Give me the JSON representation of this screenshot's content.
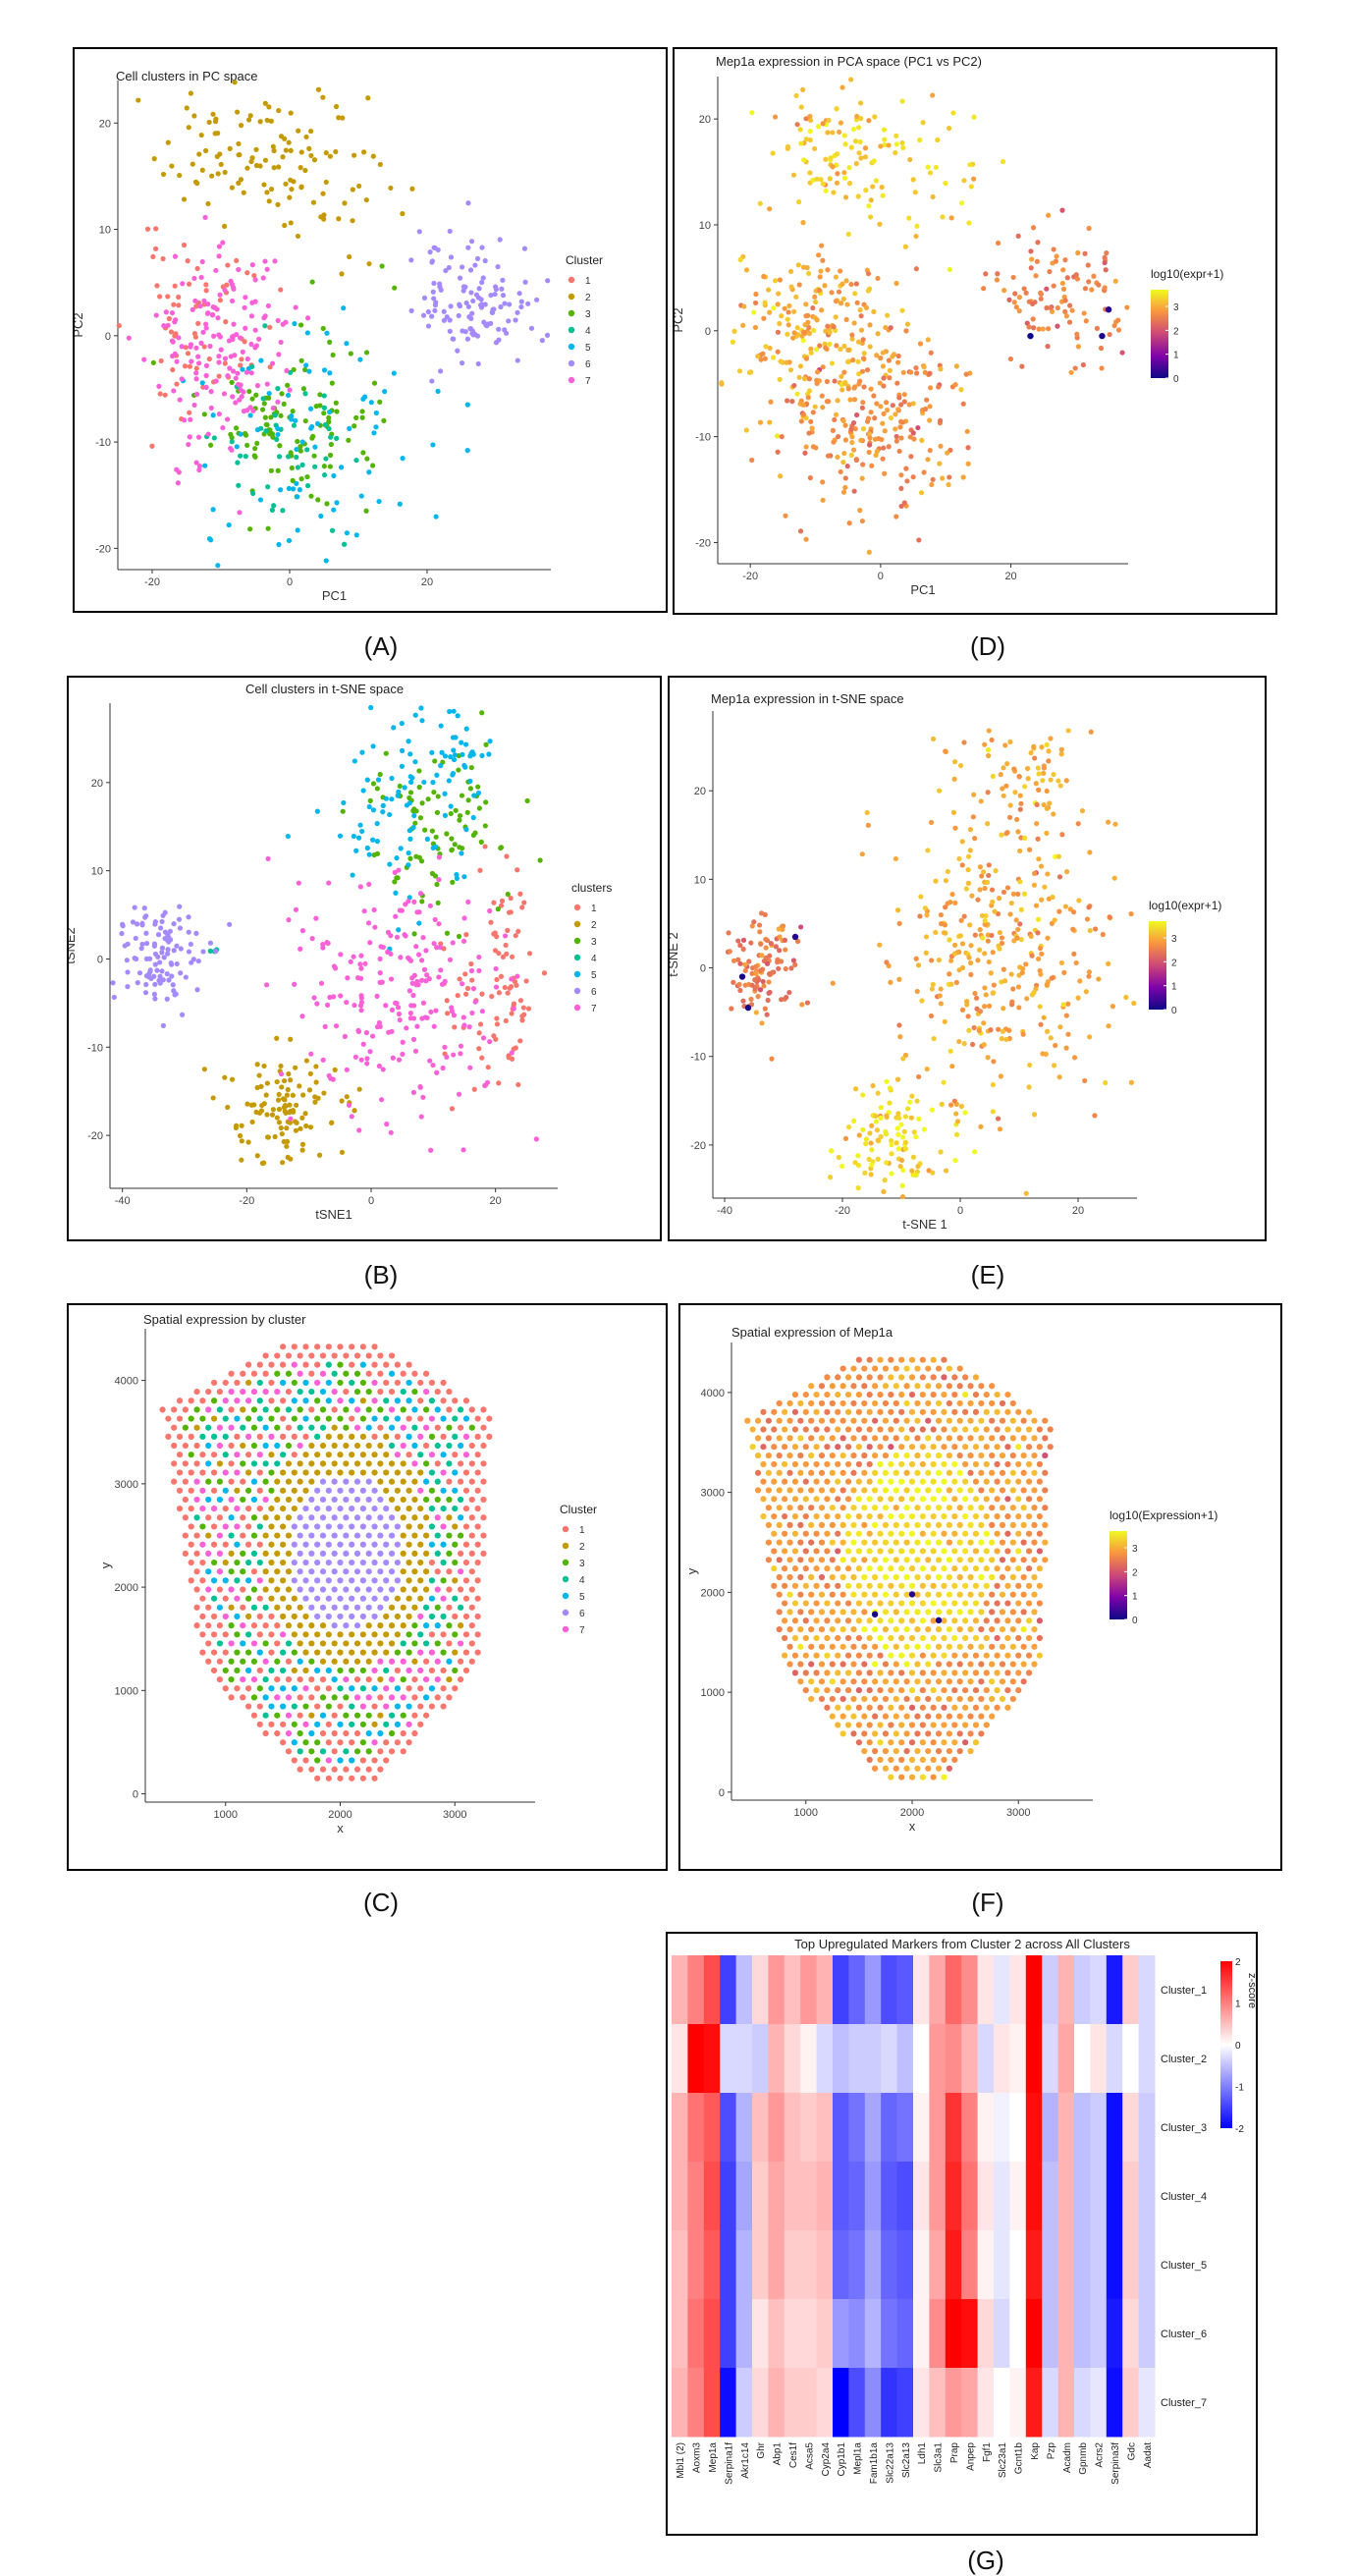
{
  "palette7": [
    "#F8766D",
    "#C49A00",
    "#53B400",
    "#00C094",
    "#00B6EB",
    "#A58AFF",
    "#FB61D7"
  ],
  "continuous_colors": [
    "#0D0887",
    "#7E03A8",
    "#CC4778",
    "#F89540",
    "#F0F921"
  ],
  "diverging_colors": [
    "#0000FF",
    "#FFFFFF",
    "#FF0000"
  ],
  "captions": {
    "A": "(A)",
    "B": "(B)",
    "C": "(C)",
    "D": "(D)",
    "E": "(E)",
    "F": "(F)",
    "G": "(G)"
  },
  "chart_data": [
    {
      "id": "A",
      "type": "scatter",
      "title": "Cell clusters in PC space",
      "xlabel": "PC1",
      "ylabel": "PC2",
      "xlim": [
        -25,
        38
      ],
      "ylim": [
        -22,
        24
      ],
      "xticks": [
        -20,
        0,
        20
      ],
      "yticks": [
        -20,
        -10,
        0,
        10,
        20
      ],
      "grid": false,
      "legend": {
        "title": "Cluster",
        "placement": "right",
        "entries": [
          "1",
          "2",
          "3",
          "4",
          "5",
          "6",
          "7"
        ]
      },
      "series": [
        {
          "name": "1",
          "blobs": [
            {
              "cx": -13,
              "cy": 1,
              "sx": 5,
              "sy": 4,
              "n": 70
            }
          ]
        },
        {
          "name": "2",
          "blobs": [
            {
              "cx": -6,
              "cy": 17,
              "sx": 6,
              "sy": 3,
              "n": 100
            },
            {
              "cx": 8,
              "cy": 14,
              "sx": 5,
              "sy": 4,
              "n": 25
            }
          ]
        },
        {
          "name": "3",
          "blobs": [
            {
              "cx": 1,
              "cy": -9,
              "sx": 6,
              "sy": 4.5,
              "n": 110
            }
          ]
        },
        {
          "name": "4",
          "blobs": [
            {
              "cx": -2,
              "cy": -11,
              "sx": 5,
              "sy": 4,
              "n": 45
            }
          ]
        },
        {
          "name": "5",
          "blobs": [
            {
              "cx": 3,
              "cy": -8,
              "sx": 9,
              "sy": 6,
              "n": 80
            }
          ]
        },
        {
          "name": "6",
          "blobs": [
            {
              "cx": 28,
              "cy": 3,
              "sx": 5,
              "sy": 3,
              "n": 110
            },
            {
              "cx": 22,
              "cy": 7,
              "sx": 3,
              "sy": 2,
              "n": 15
            }
          ]
        },
        {
          "name": "7",
          "blobs": [
            {
              "cx": -10,
              "cy": -1,
              "sx": 5,
              "sy": 5,
              "n": 160
            }
          ]
        }
      ]
    },
    {
      "id": "D",
      "type": "scatter",
      "title": "Mep1a expression in PCA space (PC1 vs PC2)",
      "xlabel": "PC1",
      "ylabel": "PC2",
      "xlim": [
        -25,
        38
      ],
      "ylim": [
        -22,
        24
      ],
      "xticks": [
        -20,
        0,
        20
      ],
      "yticks": [
        -20,
        -10,
        0,
        10,
        20
      ],
      "grid": false,
      "colorbar": {
        "title": "log10(expr+1)",
        "placement": "right",
        "range": [
          0,
          3.7
        ],
        "ticks": [
          0,
          1,
          2,
          3
        ]
      },
      "series": [
        {
          "name": "",
          "value": 3.3,
          "blobs": [
            {
              "cx": -6,
              "cy": 17,
              "sx": 6,
              "sy": 3,
              "n": 110
            },
            {
              "cx": 8,
              "cy": 14,
              "sx": 5,
              "sy": 4,
              "n": 25
            }
          ]
        },
        {
          "name": "",
          "value": 3.0,
          "blobs": [
            {
              "cx": -11,
              "cy": 0,
              "sx": 6,
              "sy": 4.5,
              "n": 220
            }
          ]
        },
        {
          "name": "",
          "value": 2.7,
          "blobs": [
            {
              "cx": 0,
              "cy": -9,
              "sx": 7,
              "sy": 5,
              "n": 230
            }
          ]
        },
        {
          "name": "",
          "value": 2.6,
          "blobs": [
            {
              "cx": 28,
              "cy": 3,
              "sx": 5,
              "sy": 3,
              "n": 110
            }
          ]
        }
      ],
      "highlight_points": [
        {
          "x": 23,
          "y": -0.5,
          "value": 0
        },
        {
          "x": 35,
          "y": 2,
          "value": 0.2
        },
        {
          "x": 34,
          "y": -0.5,
          "value": 0.1
        }
      ]
    },
    {
      "id": "B",
      "type": "scatter",
      "title": "Cell clusters in t-SNE space",
      "xlabel": "tSNE1",
      "ylabel": "tSNE2",
      "xlim": [
        -42,
        30
      ],
      "ylim": [
        -26,
        29
      ],
      "xticks": [
        -40,
        -20,
        0,
        20
      ],
      "yticks": [
        -20,
        -10,
        0,
        10,
        20
      ],
      "grid": false,
      "legend": {
        "title": "clusters",
        "placement": "right",
        "entries": [
          "1",
          "2",
          "3",
          "4",
          "5",
          "6",
          "7"
        ]
      },
      "series": [
        {
          "name": "1",
          "blobs": [
            {
              "cx": 20,
              "cy": -3,
              "sx": 4,
              "sy": 6,
              "n": 90
            }
          ]
        },
        {
          "name": "2",
          "blobs": [
            {
              "cx": -14,
              "cy": -17,
              "sx": 5,
              "sy": 3.5,
              "n": 110
            }
          ]
        },
        {
          "name": "3",
          "blobs": [
            {
              "cx": 10,
              "cy": 15,
              "sx": 6,
              "sy": 5,
              "n": 90
            }
          ]
        },
        {
          "name": "4",
          "blobs": [
            {
              "cx": -25,
              "cy": 1,
              "sx": 0.5,
              "sy": 0.5,
              "n": 3
            }
          ]
        },
        {
          "name": "5",
          "blobs": [
            {
              "cx": 5,
              "cy": 17,
              "sx": 6,
              "sy": 5,
              "n": 80
            },
            {
              "cx": 14,
              "cy": 23,
              "sx": 3,
              "sy": 3,
              "n": 30
            }
          ]
        },
        {
          "name": "6",
          "blobs": [
            {
              "cx": -34,
              "cy": 0,
              "sx": 3.5,
              "sy": 3,
              "n": 110
            }
          ]
        },
        {
          "name": "7",
          "blobs": [
            {
              "cx": 5,
              "cy": -3,
              "sx": 8,
              "sy": 7,
              "n": 220
            }
          ]
        }
      ]
    },
    {
      "id": "E",
      "type": "scatter",
      "title": "Mep1a expression in t-SNE space",
      "xlabel": "t-SNE 1",
      "ylabel": "t-SNE 2",
      "xlim": [
        -42,
        30
      ],
      "ylim": [
        -26,
        29
      ],
      "xticks": [
        -40,
        -20,
        0,
        20
      ],
      "yticks": [
        -20,
        -10,
        0,
        10,
        20
      ],
      "grid": false,
      "colorbar": {
        "title": "log10(expr+1)",
        "placement": "right",
        "range": [
          0,
          3.7
        ],
        "ticks": [
          0,
          1,
          2,
          3
        ]
      },
      "series": [
        {
          "name": "",
          "value": 2.9,
          "blobs": [
            {
              "cx": 7,
              "cy": 3,
              "sx": 9,
              "sy": 10,
              "n": 380
            },
            {
              "cx": 14,
              "cy": 21,
              "sx": 4,
              "sy": 3,
              "n": 40
            }
          ]
        },
        {
          "name": "",
          "value": 3.4,
          "blobs": [
            {
              "cx": -12,
              "cy": -19,
              "sx": 5,
              "sy": 3.5,
              "n": 110
            }
          ]
        },
        {
          "name": "",
          "value": 2.5,
          "blobs": [
            {
              "cx": -34,
              "cy": 0,
              "sx": 3.5,
              "sy": 3,
              "n": 110
            }
          ]
        }
      ],
      "highlight_points": [
        {
          "x": -37,
          "y": -1,
          "value": 0.1
        },
        {
          "x": -28,
          "y": 3.5,
          "value": 0.2
        },
        {
          "x": -36,
          "y": -4.5,
          "value": 0.1
        }
      ]
    },
    {
      "id": "C",
      "type": "scatter",
      "title": "Spatial expression by cluster",
      "xlabel": "x",
      "ylabel": "y",
      "xlim": [
        300,
        3700
      ],
      "ylim": [
        -80,
        4500
      ],
      "xticks": [
        1000,
        2000,
        3000
      ],
      "yticks": [
        0,
        1000,
        2000,
        3000,
        4000
      ],
      "grid": false,
      "legend": {
        "title": "Cluster",
        "placement": "right",
        "entries": [
          "1",
          "2",
          "3",
          "4",
          "5",
          "6",
          "7"
        ]
      },
      "spots": {
        "shape": "hexagonal-tissue",
        "spacing": 100,
        "ring_cluster": "1",
        "center_cluster": "6",
        "inner_band_cluster": "2"
      }
    },
    {
      "id": "F",
      "type": "scatter",
      "title": "Spatial expression of Mep1a",
      "xlabel": "x",
      "ylabel": "y",
      "xlim": [
        300,
        3700
      ],
      "ylim": [
        -80,
        4500
      ],
      "xticks": [
        1000,
        2000,
        3000
      ],
      "yticks": [
        0,
        1000,
        2000,
        3000,
        4000
      ],
      "grid": false,
      "colorbar": {
        "title": "log10(Expression+1)",
        "placement": "right",
        "range": [
          0,
          3.7
        ],
        "ticks": [
          0,
          1,
          2,
          3
        ]
      },
      "highlight_points": [
        {
          "x": 1650,
          "y": 1780,
          "value": 0.1
        },
        {
          "x": 2000,
          "y": 1980,
          "value": 0.2
        },
        {
          "x": 2250,
          "y": 1720,
          "value": 0.1
        }
      ]
    },
    {
      "id": "G",
      "type": "heatmap",
      "title": "Top Upregulated Markers from Cluster 2 across All Clusters",
      "colorbar": {
        "title": "z-score",
        "placement": "right",
        "range": [
          -2,
          2
        ],
        "ticks": [
          2,
          1,
          0,
          -1,
          -2
        ]
      },
      "rows": [
        "Cluster_1",
        "Cluster_2",
        "Cluster_3",
        "Cluster_4",
        "Cluster_5",
        "Cluster_6",
        "Cluster_7"
      ],
      "columns": [
        "Mbl1 (2)",
        "Aoxm3",
        "Mep1a",
        "Serpina1f",
        "Akr1c14",
        "Ghr",
        "Abp1",
        "Ces1f",
        "Acsa5",
        "Cyp2a4",
        "Cyp1b1",
        "Mepl1a",
        "Fam1b1a",
        "Slc22a13",
        "Slc2a13",
        "Ldh1",
        "Slc3a1",
        "Prap",
        "Anpep",
        "Fgf1",
        "Slc23a1",
        "Gcnt1b",
        "Kap",
        "Pzp",
        "Acadm",
        "Gpnmb",
        "Acrs2",
        "Serpina3f",
        "Gdc",
        "Aadat"
      ],
      "values": [
        [
          0.6,
          1.0,
          1.4,
          -1.5,
          -0.5,
          0.3,
          0.8,
          0.5,
          0.8,
          0.6,
          -1.5,
          -1.2,
          -0.8,
          -1.4,
          -1.3,
          0.2,
          0.7,
          1.2,
          0.9,
          0.2,
          -0.2,
          0.2,
          2.0,
          -0.4,
          0.6,
          -0.4,
          -0.3,
          -1.8,
          0.4,
          -0.3
        ],
        [
          0.2,
          2.0,
          1.9,
          -0.3,
          -0.3,
          -0.4,
          0.6,
          0.3,
          0.1,
          -0.3,
          -0.5,
          -0.4,
          -0.4,
          -0.3,
          -0.5,
          0.0,
          0.8,
          0.9,
          0.6,
          -0.3,
          0.2,
          0.1,
          2.0,
          -0.3,
          0.7,
          0.0,
          0.2,
          -0.3,
          0.0,
          -0.3
        ],
        [
          0.6,
          1.1,
          1.3,
          -1.4,
          -0.6,
          0.5,
          0.8,
          0.5,
          0.4,
          0.5,
          -1.3,
          -1.1,
          -0.7,
          -1.2,
          -1.1,
          0.1,
          0.8,
          1.6,
          1.0,
          0.1,
          -0.1,
          0.0,
          1.9,
          -0.6,
          0.6,
          -0.5,
          -0.4,
          -1.9,
          0.3,
          -0.4
        ],
        [
          0.6,
          1.0,
          1.4,
          -1.5,
          -0.7,
          0.4,
          0.7,
          0.5,
          0.5,
          0.6,
          -1.3,
          -1.2,
          -0.8,
          -1.3,
          -1.4,
          0.2,
          0.8,
          1.7,
          1.1,
          0.2,
          -0.2,
          0.1,
          1.9,
          -0.5,
          0.6,
          -0.5,
          -0.4,
          -1.9,
          0.4,
          -0.4
        ],
        [
          0.5,
          1.0,
          1.3,
          -1.5,
          -0.6,
          0.4,
          0.7,
          0.4,
          0.4,
          0.5,
          -1.2,
          -1.1,
          -0.7,
          -1.2,
          -1.3,
          0.1,
          0.7,
          1.8,
          1.0,
          0.1,
          -0.2,
          0.0,
          1.8,
          -0.5,
          0.6,
          -0.5,
          -0.4,
          -1.9,
          0.4,
          -0.4
        ],
        [
          0.5,
          1.1,
          1.4,
          -1.5,
          -0.6,
          0.2,
          0.5,
          0.3,
          0.3,
          0.4,
          -0.8,
          -0.9,
          -0.6,
          -1.1,
          -1.2,
          0.1,
          0.9,
          2.0,
          1.9,
          0.3,
          -0.3,
          0.0,
          2.0,
          -0.5,
          0.6,
          -0.5,
          -0.4,
          -1.8,
          0.3,
          -0.4
        ],
        [
          0.6,
          1.0,
          1.4,
          -1.9,
          -0.4,
          0.3,
          0.6,
          0.4,
          0.4,
          0.3,
          -2.0,
          -1.4,
          -0.9,
          -1.6,
          -1.5,
          0.2,
          0.5,
          0.8,
          0.7,
          0.2,
          0.0,
          0.1,
          1.8,
          -0.3,
          0.6,
          -0.3,
          -0.2,
          -1.9,
          0.4,
          -0.2
        ]
      ]
    }
  ]
}
